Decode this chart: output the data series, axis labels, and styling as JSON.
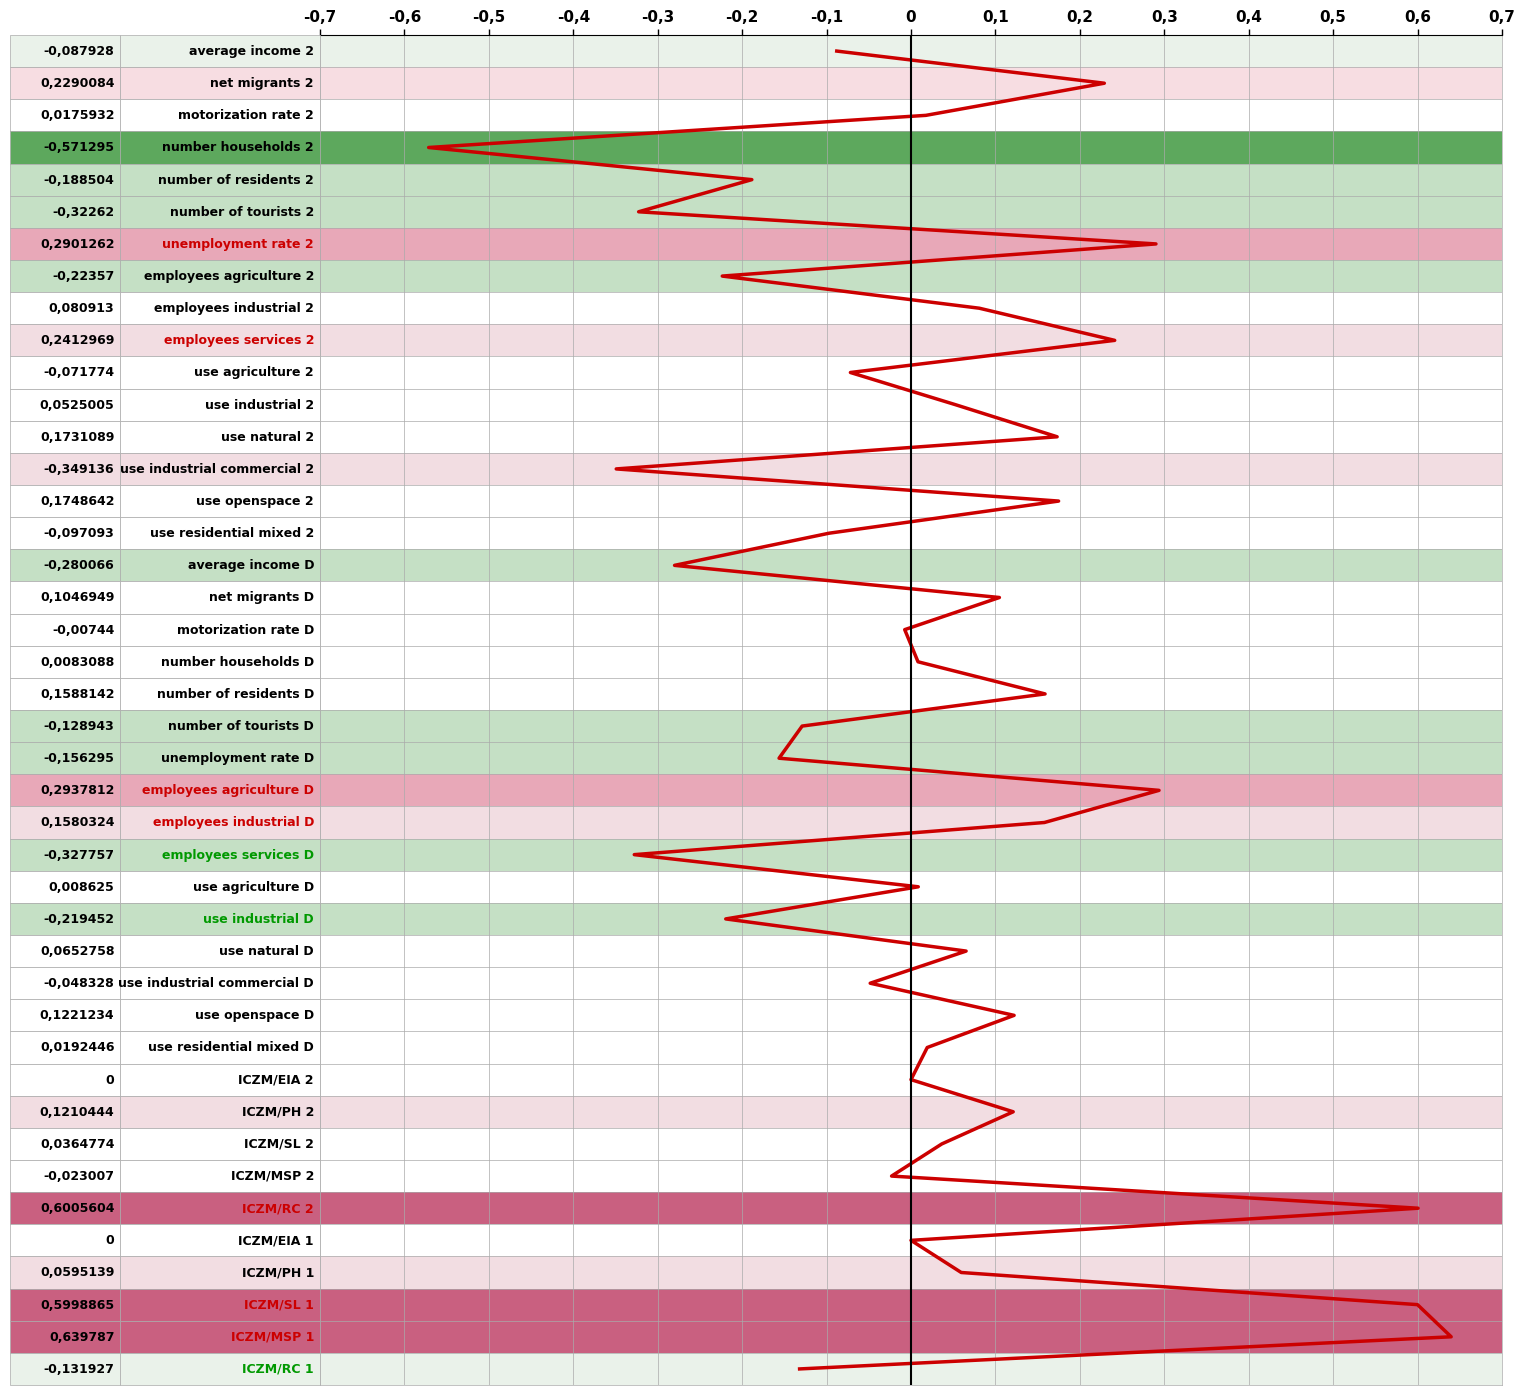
{
  "labels": [
    "average income 2",
    "net migrants 2",
    "motorization rate 2",
    "number households 2",
    "number of residents 2",
    "number of tourists 2",
    "unemployment rate 2",
    "employees agriculture 2",
    "employees industrial 2",
    "employees services 2",
    "use agriculture 2",
    "use industrial 2",
    "use natural 2",
    "use industrial commercial 2",
    "use openspace 2",
    "use residential mixed 2",
    "average income D",
    "net migrants D",
    "motorization rate D",
    "number households D",
    "number of residents D",
    "number of tourists D",
    "unemployment rate D",
    "employees agriculture D",
    "employees industrial D",
    "employees services D",
    "use agriculture D",
    "use industrial D",
    "use natural D",
    "use industrial commercial D",
    "use openspace D",
    "use residential mixed D",
    "ICZM/EIA 2",
    "ICZM/PH 2",
    "ICZM/SL 2",
    "ICZM/MSP 2",
    "ICZM/RC 2",
    "ICZM/EIA 1",
    "ICZM/PH 1",
    "ICZM/SL 1",
    "ICZM/MSP 1",
    "ICZM/RC 1"
  ],
  "values": [
    -0.087928,
    0.2290084,
    0.0175932,
    -0.571295,
    -0.188504,
    -0.32262,
    0.2901262,
    -0.22357,
    0.080913,
    0.2412969,
    -0.071774,
    0.0525005,
    0.1731089,
    -0.349136,
    0.1748642,
    -0.097093,
    -0.280066,
    0.1046949,
    -0.00744,
    0.0083088,
    0.1588142,
    -0.128943,
    -0.156295,
    0.2937812,
    0.1580324,
    -0.327757,
    0.008625,
    -0.219452,
    0.0652758,
    -0.048328,
    0.1221234,
    0.0192446,
    0,
    0.1210444,
    0.0364774,
    -0.023007,
    0.6005604,
    0,
    0.0595139,
    0.5998865,
    0.639787,
    -0.131927
  ],
  "row_colors": [
    "#eaf2ea",
    "#f7dde2",
    "#ffffff",
    "#5da85d",
    "#c5e0c5",
    "#c5e0c5",
    "#e8a8b8",
    "#c5e0c5",
    "#ffffff",
    "#f2dde2",
    "#ffffff",
    "#ffffff",
    "#ffffff",
    "#f2dde2",
    "#ffffff",
    "#ffffff",
    "#c5e0c5",
    "#ffffff",
    "#ffffff",
    "#ffffff",
    "#ffffff",
    "#c5e0c5",
    "#c5e0c5",
    "#e8a8b8",
    "#f2dde2",
    "#c5e0c5",
    "#ffffff",
    "#c5e0c5",
    "#ffffff",
    "#ffffff",
    "#ffffff",
    "#ffffff",
    "#ffffff",
    "#f2dde2",
    "#ffffff",
    "#ffffff",
    "#c96080",
    "#ffffff",
    "#f2dde2",
    "#c96080",
    "#c96080",
    "#eaf2ea"
  ],
  "label_colors": [
    "#000000",
    "#000000",
    "#000000",
    "#000000",
    "#000000",
    "#000000",
    "#cc0000",
    "#000000",
    "#000000",
    "#cc0000",
    "#000000",
    "#000000",
    "#000000",
    "#000000",
    "#000000",
    "#000000",
    "#000000",
    "#000000",
    "#000000",
    "#000000",
    "#000000",
    "#000000",
    "#000000",
    "#cc0000",
    "#cc0000",
    "#009900",
    "#000000",
    "#009900",
    "#000000",
    "#000000",
    "#000000",
    "#000000",
    "#000000",
    "#000000",
    "#000000",
    "#000000",
    "#cc0000",
    "#000000",
    "#000000",
    "#cc0000",
    "#cc0000",
    "#009900"
  ],
  "xlim": [
    -0.7,
    0.7
  ],
  "xticks": [
    -0.7,
    -0.6,
    -0.5,
    -0.4,
    -0.3,
    -0.2,
    -0.1,
    0,
    0.1,
    0.2,
    0.3,
    0.4,
    0.5,
    0.6,
    0.7
  ],
  "xtick_labels": [
    "-0,7",
    "-0,6",
    "-0,5",
    "-0,4",
    "-0,3",
    "-0,2",
    "-0,1",
    "0",
    "0,1",
    "0,2",
    "0,3",
    "0,4",
    "0,5",
    "0,6",
    "0,7"
  ],
  "line_color": "#cc0000",
  "line_width": 2.5
}
